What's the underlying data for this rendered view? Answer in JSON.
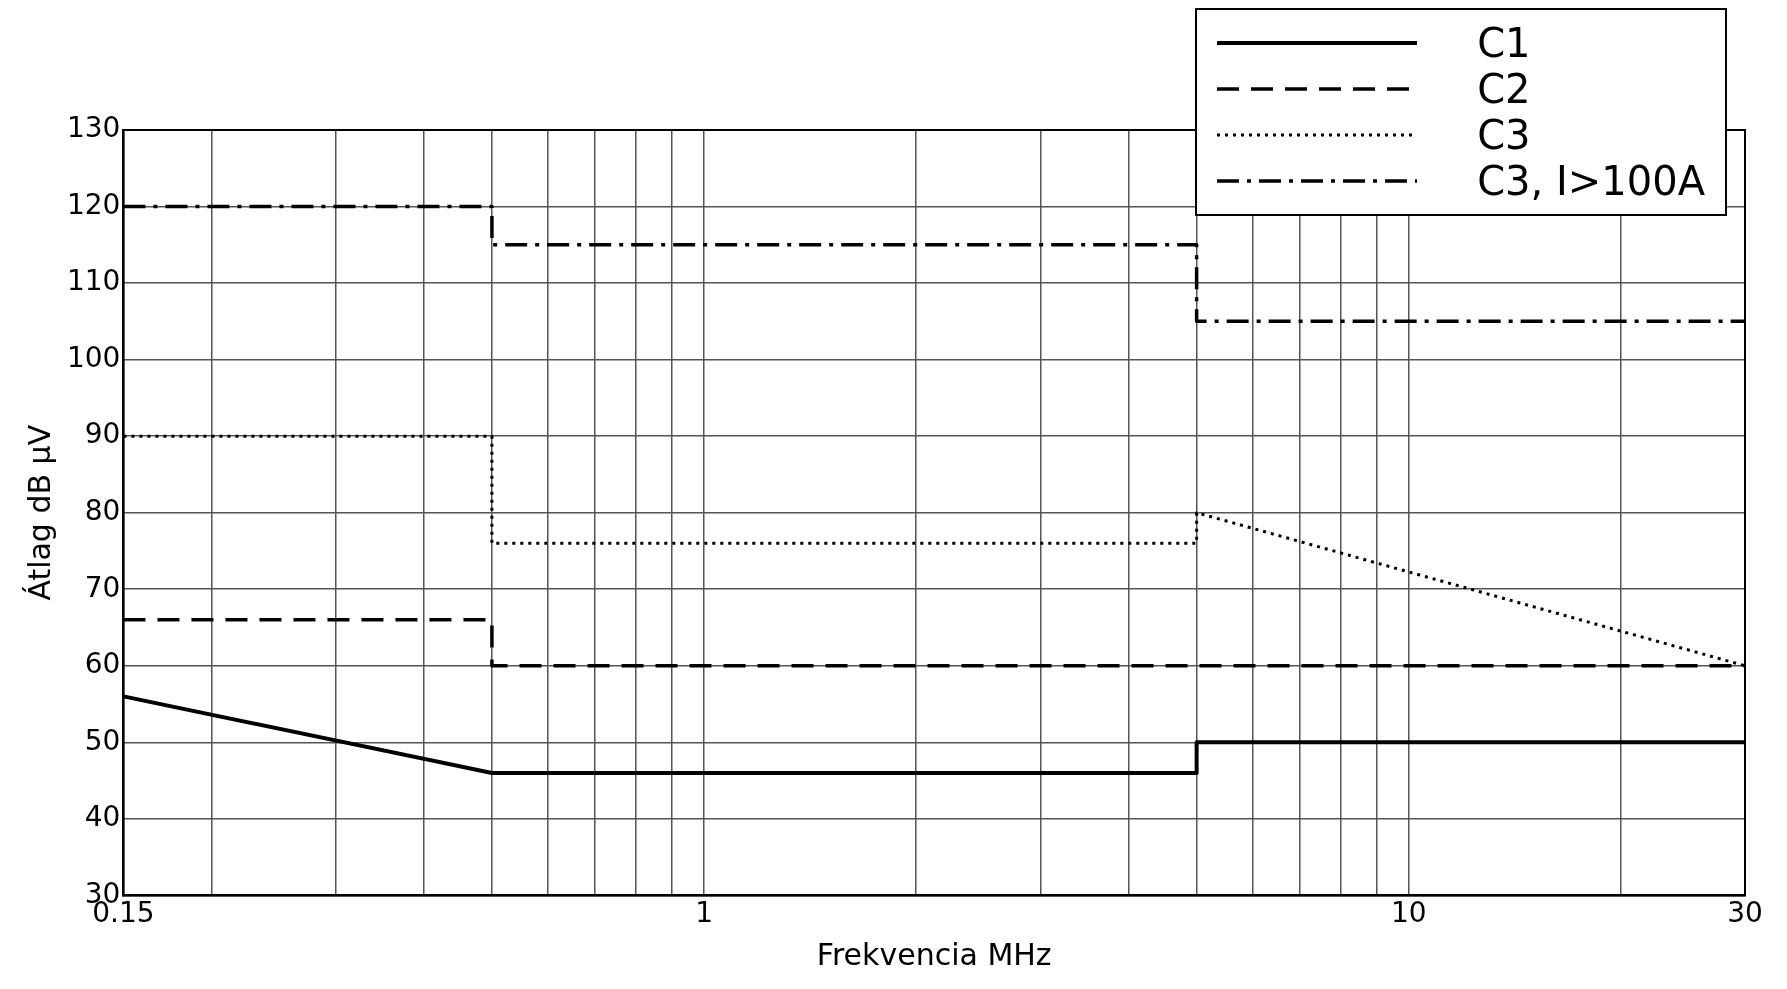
{
  "chart_data": {
    "type": "line",
    "xlabel": "Frekvencia MHz",
    "ylabel": "Átlag dB µV",
    "log": "x",
    "grid": true,
    "legend": "top right",
    "marker": "none",
    "xlim": [
      0.15,
      30
    ],
    "ylim": [
      30,
      130
    ],
    "xticks": [
      0.15,
      {
        "value": 0.2,
        "label": null
      },
      {
        "value": 0.3,
        "label": null
      },
      {
        "value": 0.4,
        "label": null
      },
      {
        "value": 0.5,
        "label": null
      },
      {
        "value": 0.6,
        "label": null
      },
      {
        "value": 0.7,
        "label": null
      },
      {
        "value": 0.8,
        "label": null
      },
      {
        "value": 0.9,
        "label": null
      },
      1,
      {
        "value": 2,
        "label": null
      },
      {
        "value": 3,
        "label": null
      },
      {
        "value": 4,
        "label": null
      },
      {
        "value": 5,
        "label": null
      },
      {
        "value": 6,
        "label": null
      },
      {
        "value": 7,
        "label": null
      },
      {
        "value": 8,
        "label": null
      },
      {
        "value": 9,
        "label": null
      },
      10,
      {
        "value": 20,
        "label": null
      },
      30
    ],
    "yticks": [
      30,
      40,
      50,
      60,
      70,
      80,
      90,
      100,
      110,
      120,
      130
    ],
    "series": [
      {
        "name": "C1",
        "color": "#000000",
        "line_style": "solid",
        "x": [
          0.15,
          0.5,
          5,
          5,
          30
        ],
        "values": [
          56,
          46,
          46,
          50,
          50
        ]
      },
      {
        "name": "C2",
        "color": "#000000",
        "line_style": "dashed",
        "x": [
          0.15,
          0.5,
          0.5,
          30
        ],
        "values": [
          66,
          66,
          60,
          60
        ]
      },
      {
        "name": "C3",
        "color": "#000000",
        "line_style": "dotted",
        "x": [
          0.15,
          0.5,
          0.5,
          5,
          5,
          30
        ],
        "values": [
          90,
          90,
          76,
          76,
          80,
          60
        ]
      },
      {
        "name": "C3, I>100A",
        "color": "#000000",
        "line_style": "dashdot",
        "x": [
          0.15,
          0.5,
          0.5,
          5,
          5,
          30
        ],
        "values": [
          120,
          120,
          115,
          115,
          105,
          105
        ]
      }
    ]
  }
}
